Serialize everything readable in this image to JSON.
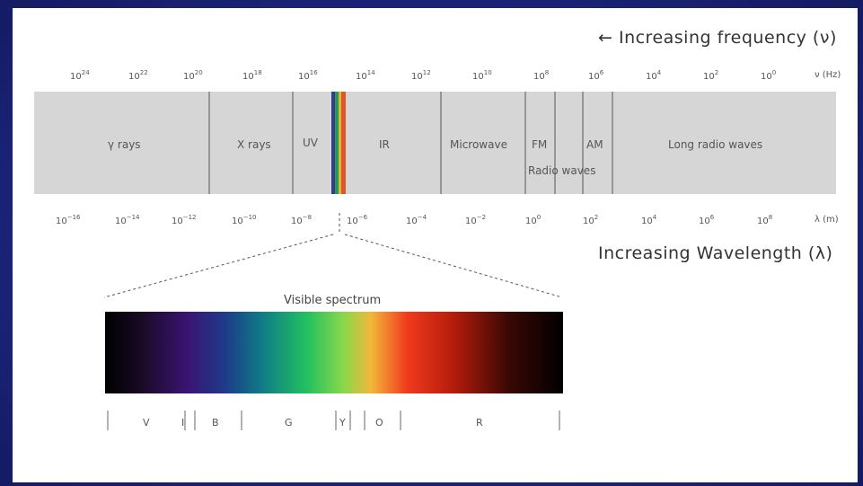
{
  "frequency_title": "← Increasing frequency (ν)",
  "wavelength_title": "Increasing Wavelength (λ)",
  "frequency_ticks": [
    {
      "base": "10",
      "exp": "24"
    },
    {
      "base": "10",
      "exp": "22"
    },
    {
      "base": "10",
      "exp": "20"
    },
    {
      "base": "10",
      "exp": "18"
    },
    {
      "base": "10",
      "exp": "16"
    },
    {
      "base": "10",
      "exp": "14"
    },
    {
      "base": "10",
      "exp": "12"
    },
    {
      "base": "10",
      "exp": "10"
    },
    {
      "base": "10",
      "exp": "8"
    },
    {
      "base": "10",
      "exp": "6"
    },
    {
      "base": "10",
      "exp": "4"
    },
    {
      "base": "10",
      "exp": "2"
    },
    {
      "base": "10",
      "exp": "0"
    }
  ],
  "frequency_unit": "ν (Hz)",
  "wavelength_ticks": [
    {
      "base": "10",
      "exp": "−16"
    },
    {
      "base": "10",
      "exp": "−14"
    },
    {
      "base": "10",
      "exp": "−12"
    },
    {
      "base": "10",
      "exp": "−10"
    },
    {
      "base": "10",
      "exp": "−8"
    },
    {
      "base": "10",
      "exp": "−6"
    },
    {
      "base": "10",
      "exp": "−4"
    },
    {
      "base": "10",
      "exp": "−2"
    },
    {
      "base": "10",
      "exp": "0"
    },
    {
      "base": "10",
      "exp": "2"
    },
    {
      "base": "10",
      "exp": "4"
    },
    {
      "base": "10",
      "exp": "6"
    },
    {
      "base": "10",
      "exp": "8"
    }
  ],
  "wavelength_unit": "λ (m)",
  "bands": {
    "gamma": "γ rays",
    "xray": "X rays",
    "uv": "UV",
    "ir": "IR",
    "microwave": "Microwave",
    "fm": "FM",
    "am": "AM",
    "radio": "Radio waves",
    "long_radio": "Long radio waves"
  },
  "visible_title": "Visible spectrum",
  "visible_labels": [
    "V",
    "I",
    "B",
    "G",
    "Y",
    "O",
    "R"
  ],
  "colors": {
    "band_fill": "#d6d6d6",
    "divider": "#555555",
    "background": "#1d2680"
  }
}
